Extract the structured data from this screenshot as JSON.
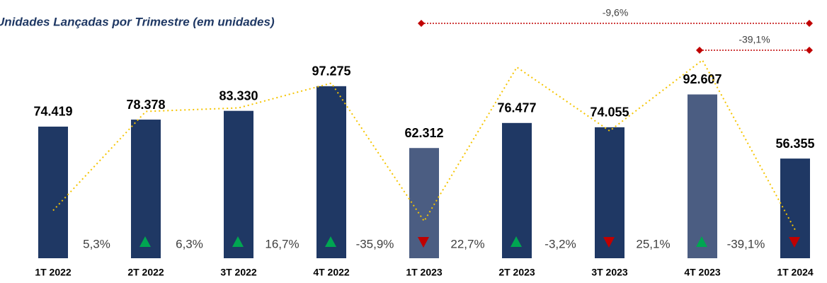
{
  "chart_data": {
    "type": "bar",
    "title": "Unidades Lançadas por Trimestre (em unidades)",
    "categories": [
      "1T 2022",
      "2T 2022",
      "3T 2022",
      "4T 2022",
      "1T 2023",
      "2T 2023",
      "3T 2023",
      "4T 2023",
      "1T 2024"
    ],
    "values": [
      74419,
      78378,
      83330,
      97275,
      62312,
      76477,
      74055,
      92607,
      56355
    ],
    "value_labels": [
      "74.419",
      "78.378",
      "83.330",
      "97.275",
      "62.312",
      "76.477",
      "74.055",
      "92.607",
      "56.355"
    ],
    "colors": [
      "#1f3864",
      "#1f3864",
      "#1f3864",
      "#1f3864",
      "#4b5d82",
      "#1f3864",
      "#1f3864",
      "#4b5d82",
      "#1f3864"
    ],
    "ylim": [
      0,
      100000
    ],
    "growth": [
      5.3,
      6.3,
      16.7,
      -35.9,
      22.7,
      -3.2,
      25.1,
      -39.1
    ],
    "growth_labels": [
      "5,3%",
      "6,3%",
      "16,7%",
      "-35,9%",
      "22,7%",
      "-3,2%",
      "25,1%",
      "-39,1%"
    ],
    "up_color": "#00a651",
    "down_color": "#c00000",
    "line_values": [
      27000,
      83000,
      85000,
      99000,
      21000,
      108000,
      72000,
      112000,
      16000
    ],
    "line_color": "#f5c400",
    "annotations": [
      "-9,6%",
      "-39,1%"
    ],
    "annotation_color": "#c00000"
  }
}
